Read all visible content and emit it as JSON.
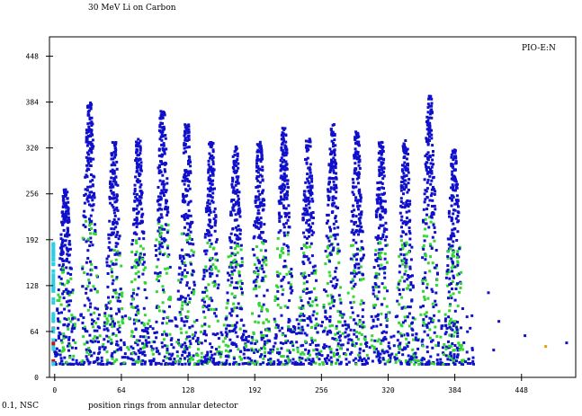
{
  "chart_data": {
    "type": "scatter",
    "title": "30 MeV Li on Carbon",
    "corner_label": "PIO-E:N",
    "footer_left": "0.1, NSC",
    "xlabel": "position rings from annular detector",
    "ylabel": "",
    "xlim": [
      -5,
      500
    ],
    "ylim": [
      0,
      475
    ],
    "x_ticks": [
      0,
      64,
      128,
      192,
      256,
      320,
      384,
      448
    ],
    "y_ticks": [
      0,
      64,
      128,
      192,
      256,
      320,
      384,
      448
    ],
    "grid": false,
    "colors": {
      "low": "#1010cc",
      "mid": "#30d830",
      "high": "#2bd0e8",
      "peak": "#cc1010",
      "axis": "#000000",
      "hot_spot": "#e8a000"
    },
    "bands": {
      "count": 17,
      "first_x": 9,
      "spacing": 23.3,
      "peak_y": [
        265,
        385,
        330,
        335,
        380,
        355,
        330,
        325,
        330,
        350,
        335,
        355,
        345,
        330,
        335,
        395,
        320
      ],
      "min_y": 20,
      "max_x": 394
    },
    "isolated_points": [
      {
        "x": 415,
        "y": 120,
        "color": "#1010cc"
      },
      {
        "x": 425,
        "y": 80,
        "color": "#1010cc"
      },
      {
        "x": 450,
        "y": 60,
        "color": "#1010cc"
      },
      {
        "x": 470,
        "y": 45,
        "color": "#e8a000"
      },
      {
        "x": 490,
        "y": 50,
        "color": "#1010cc"
      },
      {
        "x": 420,
        "y": 40,
        "color": "#1010cc"
      }
    ]
  }
}
